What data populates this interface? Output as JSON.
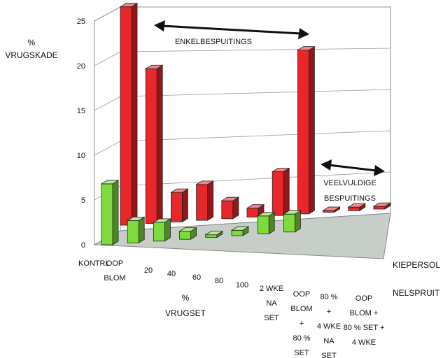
{
  "chart_data": {
    "type": "bar",
    "title": "",
    "ylabel_lines": [
      "%",
      "VRUGSKADE"
    ],
    "xlabel_lines": [
      "%",
      "VRUGSET"
    ],
    "ylim": [
      0,
      25
    ],
    "yticks": [
      "0",
      "5",
      "10",
      "15",
      "20",
      "25"
    ],
    "categories": [
      [
        "KONTRL"
      ],
      [
        "OOP",
        "BLOM"
      ],
      [
        "20"
      ],
      [
        "40"
      ],
      [
        "60"
      ],
      [
        "80"
      ],
      [
        "100"
      ],
      [
        "2 WKE",
        "NA",
        "SET"
      ],
      [
        "OOP",
        "BLOM",
        "+",
        "80 %",
        "SET"
      ],
      [
        "80 %",
        "+",
        "4 WKE",
        "NA",
        "SET"
      ],
      [
        "OOP",
        "BLOM +",
        "80 % SET +",
        "4 WKE"
      ]
    ],
    "series": [
      {
        "name": "NELSPRUIT",
        "color": "#7ddc3c",
        "values": [
          6.8,
          2.5,
          2.1,
          0.9,
          0.3,
          0.6,
          2.0,
          2.0,
          0,
          0,
          0
        ]
      },
      {
        "name": "KIEPERSOL",
        "color": "#e8262b",
        "values": [
          24.4,
          17.3,
          3.3,
          4.0,
          2.0,
          1.0,
          4.9,
          18.3,
          0.2,
          0.4,
          0.3
        ]
      }
    ],
    "grid": true,
    "annotations": {
      "single": "ENKELBESPUITINGS",
      "multiple_lines": [
        "VEELVULDIGE",
        "BESPUITINGS"
      ]
    }
  }
}
